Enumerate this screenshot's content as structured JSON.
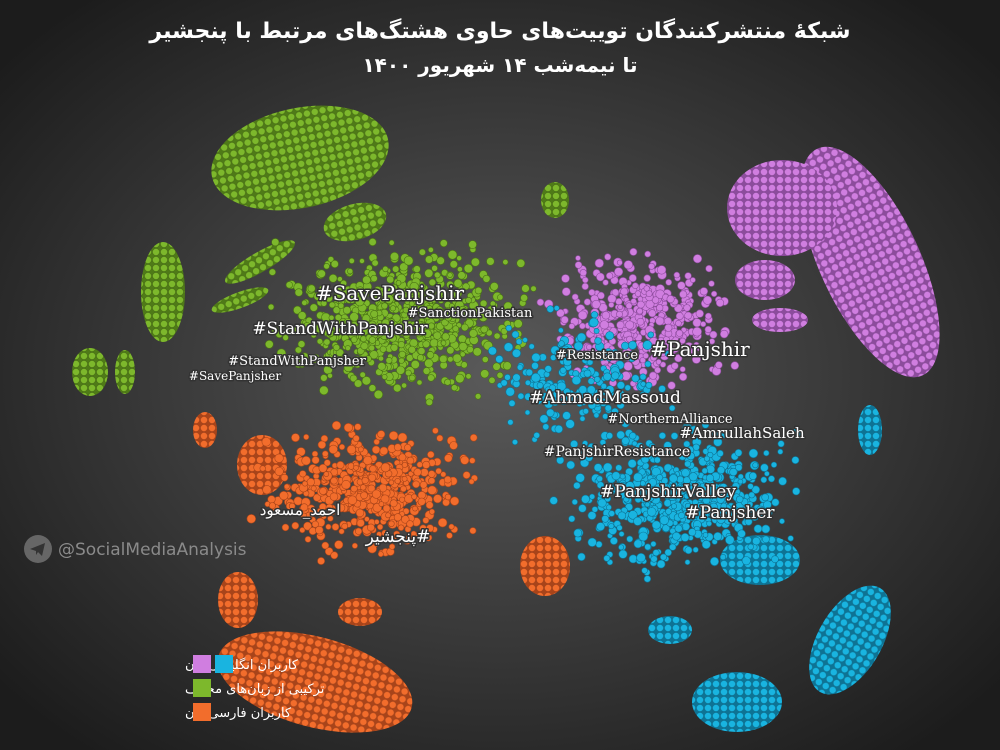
{
  "header": {
    "title": "شبکهٔ منتشرکنندگان توییت‌های حاوی هشتگ‌های  مرتبط با پنجشیر",
    "subtitle": "تا نیمه‌شب ۱۴ شهریور ۱۴۰۰"
  },
  "labels": [
    "#SavePanjshir",
    "#SanctionPakistan",
    "#StandWithPanjshir",
    "#StandWithPanjsher",
    "#SavePanjsher",
    "#Resistance",
    "#Panjshir",
    "#AhmadMassoud",
    "#NorthernAlliance",
    "#AmrullahSaleh",
    "#PanjshirResistance",
    "#PanjshirValley",
    "#Panjsher",
    "احمد_مسعود",
    "پنجشیر#"
  ],
  "watermark": "@SocialMediaAnalysis",
  "legend": [
    {
      "label": "کاربران انگلیسی‌زبان",
      "colors": [
        "#d07ee0",
        "#19b4e0"
      ]
    },
    {
      "label": "ترکیبی از زبان‌های مختلف",
      "colors": [
        "#7db82c"
      ]
    },
    {
      "label": "کاربران فارسی‌زبان",
      "colors": [
        "#f26d2c"
      ]
    }
  ]
}
